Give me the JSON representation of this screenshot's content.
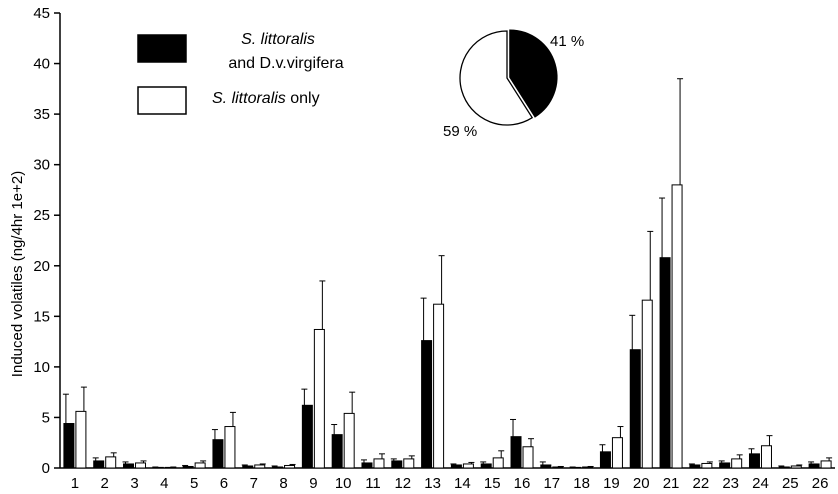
{
  "chart_data": {
    "type": "bar",
    "title": "",
    "xlabel": "",
    "ylabel": "Induced volatiles (ng/4hr 1e+2)",
    "ylim": [
      0,
      45
    ],
    "yticks": [
      0,
      5,
      10,
      15,
      20,
      25,
      30,
      35,
      40,
      45
    ],
    "grid": false,
    "legend_position": "top-left",
    "categories": [
      "1",
      "2",
      "3",
      "4",
      "5",
      "6",
      "7",
      "8",
      "9",
      "10",
      "11",
      "12",
      "13",
      "14",
      "15",
      "16",
      "17",
      "18",
      "19",
      "20",
      "21",
      "22",
      "23",
      "24",
      "25",
      "26"
    ],
    "series": [
      {
        "name_italic": "S. littoralis",
        "name_rest": "and D.v.virgifera",
        "fill": "#000000",
        "values": [
          4.4,
          0.7,
          0.4,
          0.05,
          0.15,
          2.8,
          0.2,
          0.1,
          6.2,
          3.3,
          0.5,
          0.7,
          12.6,
          0.3,
          0.4,
          3.1,
          0.3,
          0.05,
          1.6,
          11.7,
          20.8,
          0.3,
          0.5,
          1.4,
          0.1,
          0.4
        ],
        "errors": [
          2.9,
          0.3,
          0.2,
          0.05,
          0.1,
          1.0,
          0.1,
          0.1,
          1.6,
          1.0,
          0.3,
          0.2,
          4.2,
          0.1,
          0.2,
          1.7,
          0.3,
          0.05,
          0.7,
          3.4,
          5.9,
          0.1,
          0.2,
          0.5,
          0.1,
          0.2
        ]
      },
      {
        "name_italic": "S. littoralis",
        "name_rest": " only",
        "fill": "#ffffff",
        "values": [
          5.6,
          1.1,
          0.5,
          0.05,
          0.5,
          4.1,
          0.3,
          0.25,
          13.7,
          5.4,
          0.9,
          0.9,
          16.2,
          0.4,
          1.0,
          2.1,
          0.1,
          0.1,
          3.0,
          16.6,
          28.0,
          0.45,
          0.9,
          2.2,
          0.2,
          0.7
        ],
        "errors": [
          2.4,
          0.4,
          0.2,
          0.05,
          0.2,
          1.4,
          0.1,
          0.1,
          4.8,
          2.1,
          0.5,
          0.3,
          4.8,
          0.15,
          0.7,
          0.8,
          0.05,
          0.05,
          1.1,
          6.8,
          10.5,
          0.15,
          0.4,
          1.0,
          0.1,
          0.3
        ]
      }
    ],
    "inset_pie": {
      "slices": [
        {
          "label": "41 %",
          "value": 41,
          "fill": "#000000"
        },
        {
          "label": "59 %",
          "value": 59,
          "fill": "#ffffff"
        }
      ]
    }
  }
}
